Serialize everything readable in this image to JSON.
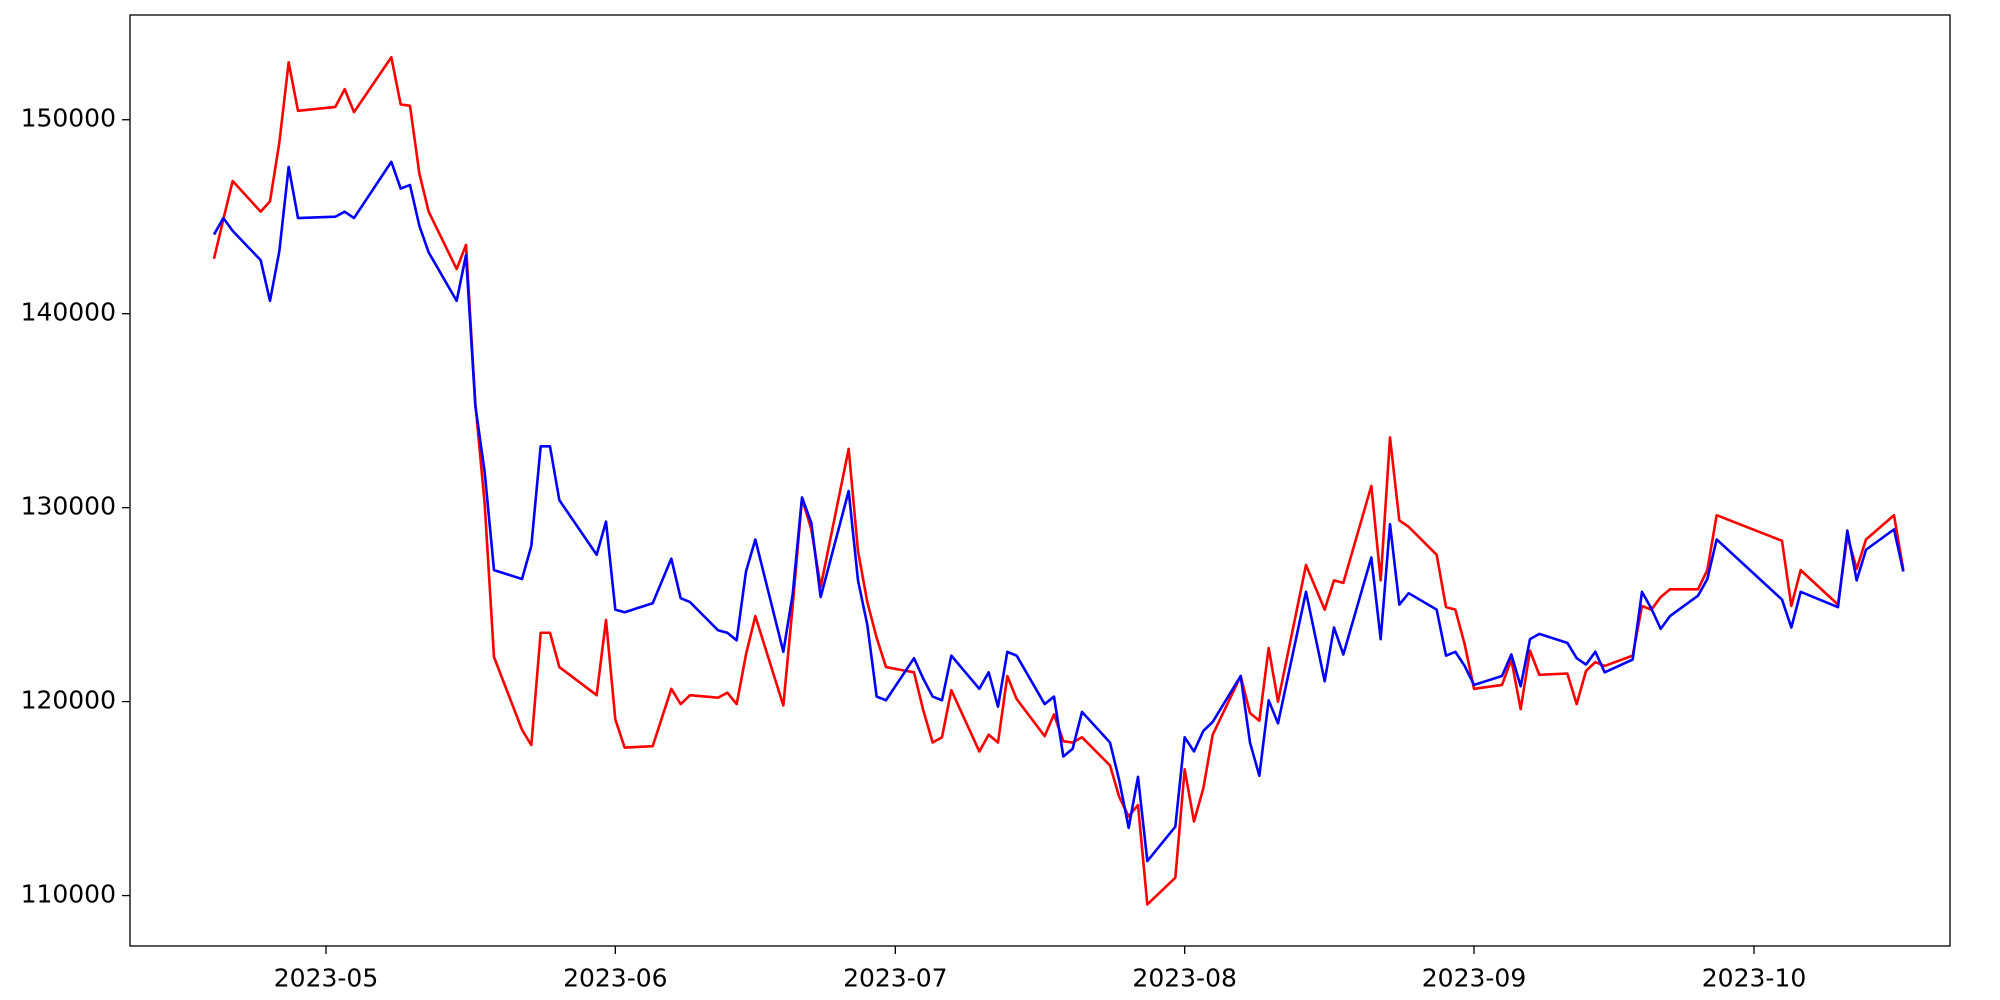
{
  "chart_data": {
    "type": "line",
    "x": [
      "2023-04-19",
      "2023-04-20",
      "2023-04-21",
      "2023-04-24",
      "2023-04-25",
      "2023-04-26",
      "2023-04-27",
      "2023-04-28",
      "2023-05-02",
      "2023-05-03",
      "2023-05-04",
      "2023-05-08",
      "2023-05-09",
      "2023-05-10",
      "2023-05-11",
      "2023-05-12",
      "2023-05-15",
      "2023-05-16",
      "2023-05-17",
      "2023-05-18",
      "2023-05-19",
      "2023-05-22",
      "2023-05-23",
      "2023-05-24",
      "2023-05-25",
      "2023-05-26",
      "2023-05-30",
      "2023-05-31",
      "2023-06-01",
      "2023-06-02",
      "2023-06-05",
      "2023-06-07",
      "2023-06-08",
      "2023-06-09",
      "2023-06-12",
      "2023-06-13",
      "2023-06-14",
      "2023-06-15",
      "2023-06-16",
      "2023-06-19",
      "2023-06-20",
      "2023-06-21",
      "2023-06-22",
      "2023-06-23",
      "2023-06-26",
      "2023-06-27",
      "2023-06-28",
      "2023-06-29",
      "2023-06-30",
      "2023-07-03",
      "2023-07-04",
      "2023-07-05",
      "2023-07-06",
      "2023-07-07",
      "2023-07-10",
      "2023-07-11",
      "2023-07-12",
      "2023-07-13",
      "2023-07-14",
      "2023-07-17",
      "2023-07-18",
      "2023-07-19",
      "2023-07-20",
      "2023-07-21",
      "2023-07-24",
      "2023-07-25",
      "2023-07-26",
      "2023-07-27",
      "2023-07-28",
      "2023-07-31",
      "2023-08-01",
      "2023-08-02",
      "2023-08-03",
      "2023-08-04",
      "2023-08-07",
      "2023-08-08",
      "2023-08-09",
      "2023-08-10",
      "2023-08-11",
      "2023-08-14",
      "2023-08-16",
      "2023-08-17",
      "2023-08-18",
      "2023-08-21",
      "2023-08-22",
      "2023-08-23",
      "2023-08-24",
      "2023-08-25",
      "2023-08-28",
      "2023-08-29",
      "2023-08-30",
      "2023-08-31",
      "2023-09-01",
      "2023-09-04",
      "2023-09-05",
      "2023-09-06",
      "2023-09-07",
      "2023-09-08",
      "2023-09-11",
      "2023-09-12",
      "2023-09-13",
      "2023-09-14",
      "2023-09-15",
      "2023-09-18",
      "2023-09-19",
      "2023-09-20",
      "2023-09-21",
      "2023-09-22",
      "2023-09-25",
      "2023-09-26",
      "2023-09-27",
      "2023-10-04",
      "2023-10-05",
      "2023-10-06",
      "2023-10-10",
      "2023-10-11",
      "2023-10-12",
      "2023-10-13",
      "2023-10-16",
      "2023-10-17"
    ],
    "series": [
      {
        "color": "#ff0000",
        "values": [
          142830,
          144870,
          146840,
          145260,
          145790,
          148820,
          152960,
          150460,
          150660,
          151580,
          150390,
          153220,
          150790,
          150720,
          147240,
          145260,
          142300,
          143550,
          135390,
          130200,
          122300,
          118550,
          117760,
          123550,
          123550,
          121780,
          120330,
          124210,
          119080,
          117630,
          117700,
          120660,
          119870,
          120330,
          120200,
          120460,
          119870,
          122430,
          124410,
          119800,
          124930,
          130460,
          128880,
          125920,
          133030,
          127760,
          125130,
          123290,
          121780,
          121510,
          119540,
          117890,
          118160,
          120590,
          117430,
          118290,
          117890,
          121320,
          120130,
          118220,
          119340,
          117960,
          117890,
          118160,
          116710,
          115070,
          114080,
          114670,
          109540,
          110920,
          116510,
          113820,
          115530,
          118290,
          121320,
          119410,
          119010,
          122760,
          120000,
          127040,
          124740,
          126250,
          126120,
          131120,
          126250,
          133620,
          129340,
          129010,
          127570,
          124870,
          124740,
          122960,
          120660,
          120860,
          122170,
          119610,
          122630,
          121380,
          121450,
          119870,
          121580,
          122040,
          121840,
          122370,
          124930,
          124740,
          125390,
          125790,
          125790,
          126780,
          129610,
          128290,
          124930,
          126780,
          125000,
          128550,
          126840,
          128360,
          129610,
          126780
        ]
      },
      {
        "color": "#0000ff",
        "values": [
          144080,
          144930,
          144270,
          142760,
          140660,
          143220,
          147570,
          144930,
          145000,
          145260,
          144930,
          147830,
          146450,
          146640,
          144540,
          143160,
          140660,
          143030,
          135260,
          131840,
          126780,
          126320,
          128030,
          133160,
          133160,
          130390,
          127570,
          129280,
          124740,
          124610,
          125070,
          127370,
          125330,
          125130,
          123680,
          123550,
          123160,
          126710,
          128360,
          122570,
          125530,
          130530,
          129210,
          125390,
          130860,
          126250,
          123950,
          120260,
          120070,
          122240,
          121180,
          120260,
          120070,
          122370,
          120660,
          121510,
          119740,
          122570,
          122370,
          119870,
          120260,
          117170,
          117570,
          119470,
          117890,
          115920,
          113490,
          116120,
          111780,
          113550,
          118160,
          117430,
          118490,
          118950,
          121320,
          117890,
          116180,
          120070,
          118880,
          125660,
          121050,
          123820,
          122430,
          127430,
          123220,
          129150,
          125000,
          125590,
          124740,
          122370,
          122570,
          121840,
          120860,
          121320,
          122430,
          120790,
          123220,
          123490,
          123030,
          122240,
          121910,
          122570,
          121510,
          122170,
          125660,
          124800,
          123750,
          124410,
          125460,
          126320,
          128360,
          125260,
          123820,
          125660,
          124870,
          128820,
          126250,
          127830,
          128880,
          126710
        ]
      }
    ],
    "xlim": [
      "2023-04-10",
      "2023-10-22"
    ],
    "xticks": [
      {
        "value": "2023-05-01",
        "label": "2023-05"
      },
      {
        "value": "2023-06-01",
        "label": "2023-06"
      },
      {
        "value": "2023-07-01",
        "label": "2023-07"
      },
      {
        "value": "2023-08-01",
        "label": "2023-08"
      },
      {
        "value": "2023-09-01",
        "label": "2023-09"
      },
      {
        "value": "2023-10-01",
        "label": "2023-10"
      }
    ],
    "ylim": [
      107400,
      155400
    ],
    "yticks": [
      110000,
      120000,
      130000,
      140000,
      150000
    ],
    "grid": false
  }
}
